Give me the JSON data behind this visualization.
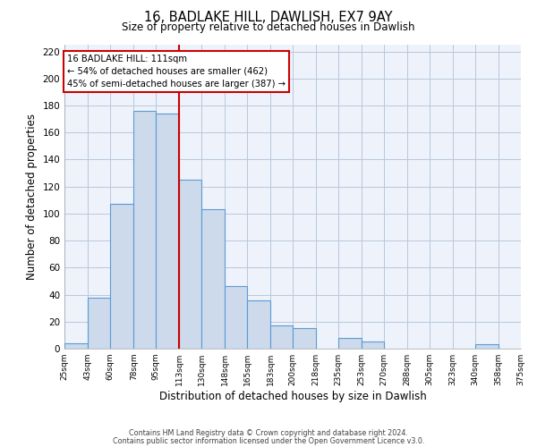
{
  "title": "16, BADLAKE HILL, DAWLISH, EX7 9AY",
  "subtitle": "Size of property relative to detached houses in Dawlish",
  "xlabel": "Distribution of detached houses by size in Dawlish",
  "ylabel": "Number of detached properties",
  "bar_color": "#ccdaeb",
  "bar_edge_color": "#5b9bd5",
  "grid_color": "#b8c8dc",
  "background_color": "#eef2fa",
  "marker_color": "#cc0000",
  "bin_edges": [
    25,
    43,
    60,
    78,
    95,
    113,
    130,
    148,
    165,
    183,
    200,
    218,
    235,
    253,
    270,
    288,
    305,
    323,
    340,
    358,
    375
  ],
  "counts": [
    4,
    38,
    107,
    176,
    174,
    125,
    103,
    46,
    36,
    17,
    15,
    0,
    8,
    5,
    0,
    0,
    0,
    0,
    3,
    0
  ],
  "tick_labels": [
    "25sqm",
    "43sqm",
    "60sqm",
    "78sqm",
    "95sqm",
    "113sqm",
    "130sqm",
    "148sqm",
    "165sqm",
    "183sqm",
    "200sqm",
    "218sqm",
    "235sqm",
    "253sqm",
    "270sqm",
    "288sqm",
    "305sqm",
    "323sqm",
    "340sqm",
    "358sqm",
    "375sqm"
  ],
  "ylim": [
    0,
    225
  ],
  "yticks": [
    0,
    20,
    40,
    60,
    80,
    100,
    120,
    140,
    160,
    180,
    200,
    220
  ],
  "annotation_title": "16 BADLAKE HILL: 111sqm",
  "annotation_line1": "← 54% of detached houses are smaller (462)",
  "annotation_line2": "45% of semi-detached houses are larger (387) →",
  "footer1": "Contains HM Land Registry data © Crown copyright and database right 2024.",
  "footer2": "Contains public sector information licensed under the Open Government Licence v3.0."
}
